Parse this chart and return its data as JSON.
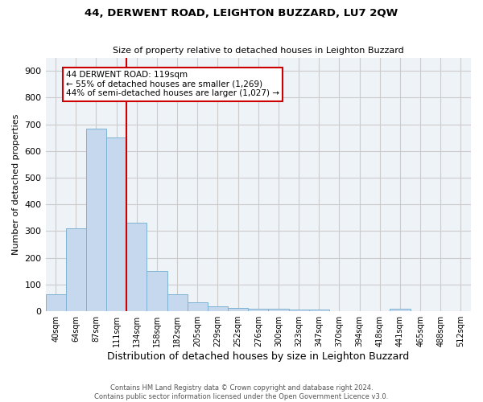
{
  "title": "44, DERWENT ROAD, LEIGHTON BUZZARD, LU7 2QW",
  "subtitle": "Size of property relative to detached houses in Leighton Buzzard",
  "xlabel": "Distribution of detached houses by size in Leighton Buzzard",
  "ylabel": "Number of detached properties",
  "bar_color": "#c5d8ed",
  "bar_edge_color": "#7fb3d3",
  "categories": [
    "40sqm",
    "64sqm",
    "87sqm",
    "111sqm",
    "134sqm",
    "158sqm",
    "182sqm",
    "205sqm",
    "229sqm",
    "252sqm",
    "276sqm",
    "300sqm",
    "323sqm",
    "347sqm",
    "370sqm",
    "394sqm",
    "418sqm",
    "441sqm",
    "465sqm",
    "488sqm",
    "512sqm"
  ],
  "values": [
    63,
    310,
    685,
    650,
    330,
    152,
    63,
    33,
    18,
    12,
    10,
    10,
    7,
    5,
    0,
    0,
    0,
    8,
    0,
    0,
    0
  ],
  "red_line_x": 3.5,
  "annotation_text": "44 DERWENT ROAD: 119sqm\n← 55% of detached houses are smaller (1,269)\n44% of semi-detached houses are larger (1,027) →",
  "annotation_box_color": "#ffffff",
  "annotation_border_color": "#cc0000",
  "ylim": [
    0,
    950
  ],
  "yticks": [
    0,
    100,
    200,
    300,
    400,
    500,
    600,
    700,
    800,
    900
  ],
  "grid_color": "#cccccc",
  "bg_color": "#eef3f8",
  "footer": "Contains HM Land Registry data © Crown copyright and database right 2024.\nContains public sector information licensed under the Open Government Licence v3.0.",
  "title_fontsize": 9.5,
  "subtitle_fontsize": 8,
  "footer_fontsize": 6
}
